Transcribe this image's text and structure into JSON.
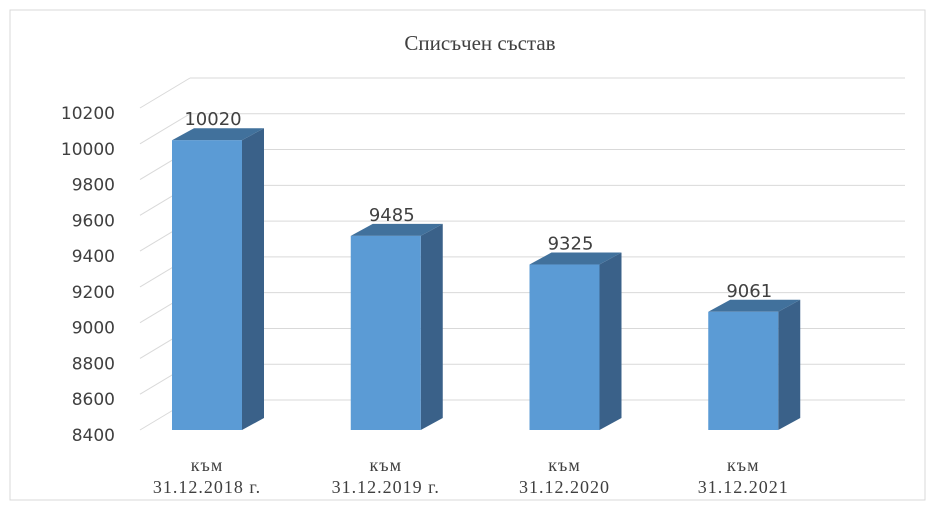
{
  "chart_data": {
    "type": "bar3d",
    "title": "Списъчен състав",
    "categories": [
      "към\n31.12.2018 г.",
      "към\n31.12.2019 г.",
      "към\n31.12.2020",
      "към\n31.12.2021"
    ],
    "values": [
      10020,
      9485,
      9325,
      9061
    ],
    "color": "#5b9bd5",
    "ylim": [
      8400,
      10200
    ],
    "yticks": [
      8400,
      8600,
      8800,
      9000,
      9200,
      9400,
      9600,
      9800,
      10000,
      10200
    ],
    "grid": true
  }
}
